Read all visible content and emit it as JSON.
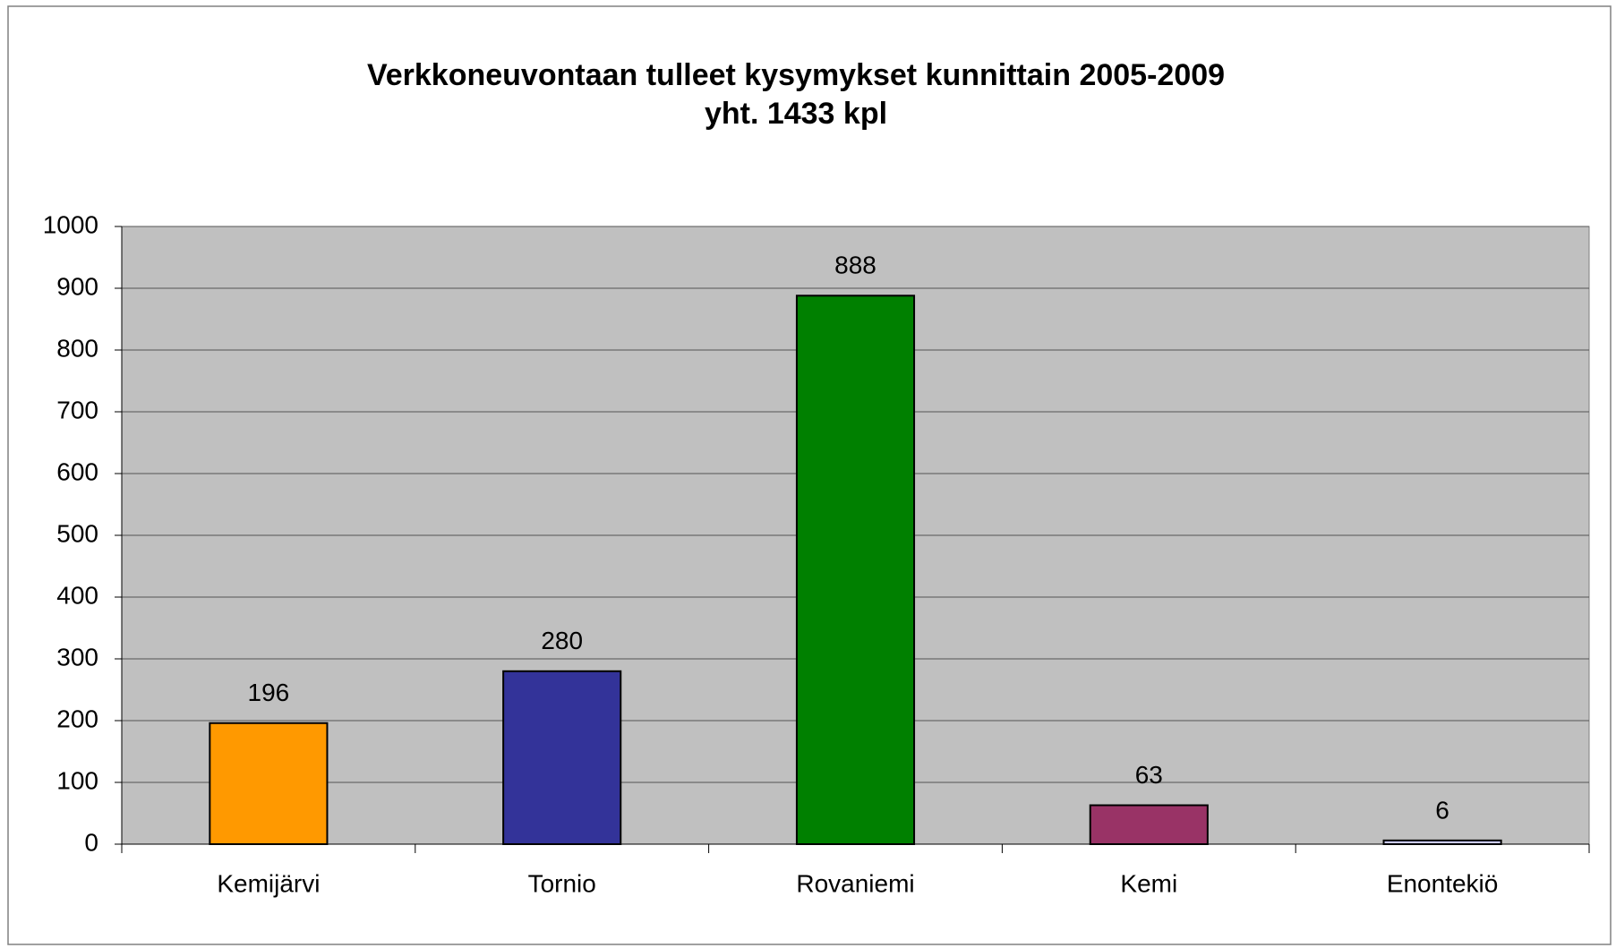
{
  "chart_data": {
    "type": "bar",
    "title": "Verkkoneuvontaan tulleet kysymykset kunnittain 2005-2009",
    "subtitle": "yht. 1433 kpl",
    "categories": [
      "Kemijärvi",
      "Tornio",
      "Rovaniemi",
      "Kemi",
      "Enontekiö"
    ],
    "values": [
      196,
      280,
      888,
      63,
      6
    ],
    "colors": [
      "#ff9900",
      "#333399",
      "#008000",
      "#993366",
      "#ccccff"
    ],
    "ylim": [
      0,
      1000
    ],
    "yticks": [
      0,
      100,
      200,
      300,
      400,
      500,
      600,
      700,
      800,
      900,
      1000
    ],
    "grid": true
  }
}
